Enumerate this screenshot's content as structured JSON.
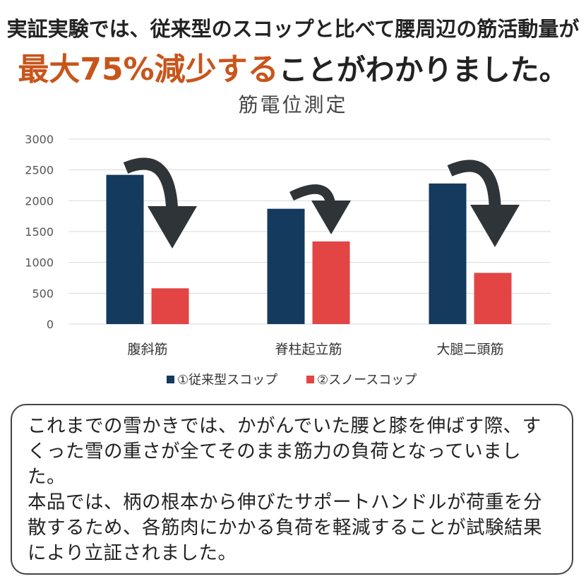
{
  "header": {
    "line1": "実証実験では、従来型のスコップと比べて腰周辺の筋活動量が",
    "line2_accent": "最大75%減少する",
    "line2_rest": "ことがわかりました。"
  },
  "chart_data": {
    "type": "bar",
    "title": "筋電位測定",
    "categories": [
      "腹斜筋",
      "脊柱起立筋",
      "大腿二頭筋"
    ],
    "series": [
      {
        "name": "①従来型スコップ",
        "color": "#143a5e",
        "values": [
          2420,
          1870,
          2280
        ]
      },
      {
        "name": "②スノースコップ",
        "color": "#e34444",
        "values": [
          580,
          1340,
          830
        ]
      }
    ],
    "ylim": [
      0,
      3000
    ],
    "yticks": [
      0,
      500,
      1000,
      1500,
      2000,
      2500,
      3000
    ],
    "grid": true,
    "legend_position": "bottom",
    "arrow_color": "#2e3438"
  },
  "textbox": {
    "paragraph1": "これまでの雪かきでは、かがんでいた腰と膝を伸ばす際、すくった雪の重さが全てそのまま筋力の負荷となっていました。",
    "paragraph2": "本品では、柄の根本から伸びたサポートハンドルが荷重を分散するため、各筋肉にかかる負荷を軽減することが試験結果により立証されました。"
  }
}
